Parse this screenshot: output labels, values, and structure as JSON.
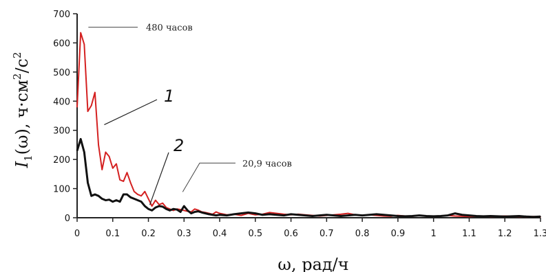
{
  "chart_data": {
    "type": "line",
    "xlabel": "ω, рад/ч",
    "ylabel": {
      "main": "I",
      "sub": "1",
      "rest": "(ω), ч·см",
      "sup1": "2",
      "unit2": "/с",
      "sup2": "2"
    },
    "xlim": [
      0,
      1.3
    ],
    "ylim": [
      0,
      700
    ],
    "x_ticks": [
      "0",
      "0.1",
      "0.2",
      "0.3",
      "0.4",
      "0.5",
      "0.6",
      "0.7",
      "0.8",
      "0.9",
      "1",
      "1.1",
      "1.2",
      "1.3"
    ],
    "y_ticks": [
      "0",
      "100",
      "200",
      "300",
      "400",
      "500",
      "600",
      "700"
    ],
    "grid": false,
    "series": [
      {
        "name": "1",
        "color": "#d42020",
        "x": [
          0.0,
          0.01,
          0.02,
          0.03,
          0.04,
          0.05,
          0.06,
          0.07,
          0.08,
          0.09,
          0.1,
          0.11,
          0.12,
          0.13,
          0.14,
          0.15,
          0.16,
          0.17,
          0.18,
          0.19,
          0.2,
          0.21,
          0.22,
          0.23,
          0.24,
          0.25,
          0.26,
          0.27,
          0.28,
          0.29,
          0.3,
          0.31,
          0.32,
          0.33,
          0.34,
          0.35,
          0.36,
          0.37,
          0.38,
          0.39,
          0.4,
          0.42,
          0.44,
          0.46,
          0.48,
          0.5,
          0.52,
          0.54,
          0.56,
          0.58,
          0.6,
          0.62,
          0.64,
          0.66,
          0.68,
          0.7,
          0.72,
          0.74,
          0.76,
          0.78,
          0.8,
          0.82,
          0.84,
          0.86,
          0.88,
          0.9,
          0.92,
          0.94,
          0.96,
          0.98,
          1.0,
          1.02,
          1.04,
          1.06,
          1.08,
          1.1,
          1.12,
          1.14,
          1.16,
          1.18,
          1.2,
          1.22,
          1.24,
          1.26,
          1.28,
          1.3
        ],
        "y": [
          380,
          635,
          595,
          365,
          385,
          430,
          250,
          165,
          225,
          210,
          170,
          185,
          130,
          125,
          155,
          120,
          90,
          80,
          75,
          90,
          65,
          40,
          60,
          45,
          50,
          35,
          30,
          25,
          30,
          28,
          25,
          22,
          20,
          30,
          26,
          20,
          18,
          15,
          12,
          20,
          15,
          10,
          12,
          8,
          15,
          10,
          12,
          18,
          15,
          12,
          10,
          12,
          10,
          8,
          6,
          8,
          10,
          12,
          15,
          10,
          8,
          10,
          8,
          6,
          5,
          8,
          6,
          5,
          8,
          6,
          5,
          6,
          8,
          6,
          5,
          4,
          5,
          6,
          4,
          5,
          6,
          5,
          4,
          3,
          4,
          3
        ]
      },
      {
        "name": "2",
        "color": "#111111",
        "x": [
          0.0,
          0.01,
          0.02,
          0.03,
          0.04,
          0.05,
          0.06,
          0.07,
          0.08,
          0.09,
          0.1,
          0.11,
          0.12,
          0.13,
          0.14,
          0.15,
          0.16,
          0.17,
          0.18,
          0.19,
          0.2,
          0.21,
          0.22,
          0.23,
          0.24,
          0.25,
          0.26,
          0.27,
          0.28,
          0.29,
          0.3,
          0.31,
          0.32,
          0.33,
          0.34,
          0.35,
          0.36,
          0.37,
          0.38,
          0.39,
          0.4,
          0.42,
          0.44,
          0.46,
          0.48,
          0.5,
          0.52,
          0.54,
          0.56,
          0.58,
          0.6,
          0.62,
          0.64,
          0.66,
          0.68,
          0.7,
          0.72,
          0.74,
          0.76,
          0.78,
          0.8,
          0.82,
          0.84,
          0.86,
          0.88,
          0.9,
          0.92,
          0.94,
          0.96,
          0.98,
          1.0,
          1.02,
          1.04,
          1.06,
          1.08,
          1.1,
          1.12,
          1.14,
          1.16,
          1.18,
          1.2,
          1.22,
          1.24,
          1.26,
          1.28,
          1.3
        ],
        "y": [
          230,
          270,
          225,
          120,
          75,
          80,
          75,
          65,
          60,
          62,
          55,
          60,
          55,
          80,
          80,
          70,
          65,
          60,
          55,
          40,
          30,
          25,
          35,
          40,
          38,
          30,
          25,
          30,
          28,
          20,
          40,
          25,
          15,
          20,
          22,
          18,
          15,
          12,
          10,
          8,
          10,
          8,
          12,
          15,
          18,
          15,
          10,
          12,
          10,
          8,
          12,
          10,
          8,
          6,
          8,
          10,
          8,
          6,
          8,
          10,
          8,
          10,
          12,
          10,
          8,
          6,
          5,
          6,
          8,
          6,
          5,
          6,
          8,
          15,
          10,
          8,
          6,
          5,
          6,
          5,
          4,
          5,
          6,
          4,
          3,
          4
        ]
      }
    ],
    "annotations": [
      {
        "text": "480 часов",
        "x": 0.02,
        "y": 635
      },
      {
        "text": "20,9 часов",
        "x": 0.3,
        "y": 65
      }
    ],
    "curve_labels": [
      {
        "text": "1",
        "series": 0
      },
      {
        "text": "2",
        "series": 1
      }
    ]
  }
}
